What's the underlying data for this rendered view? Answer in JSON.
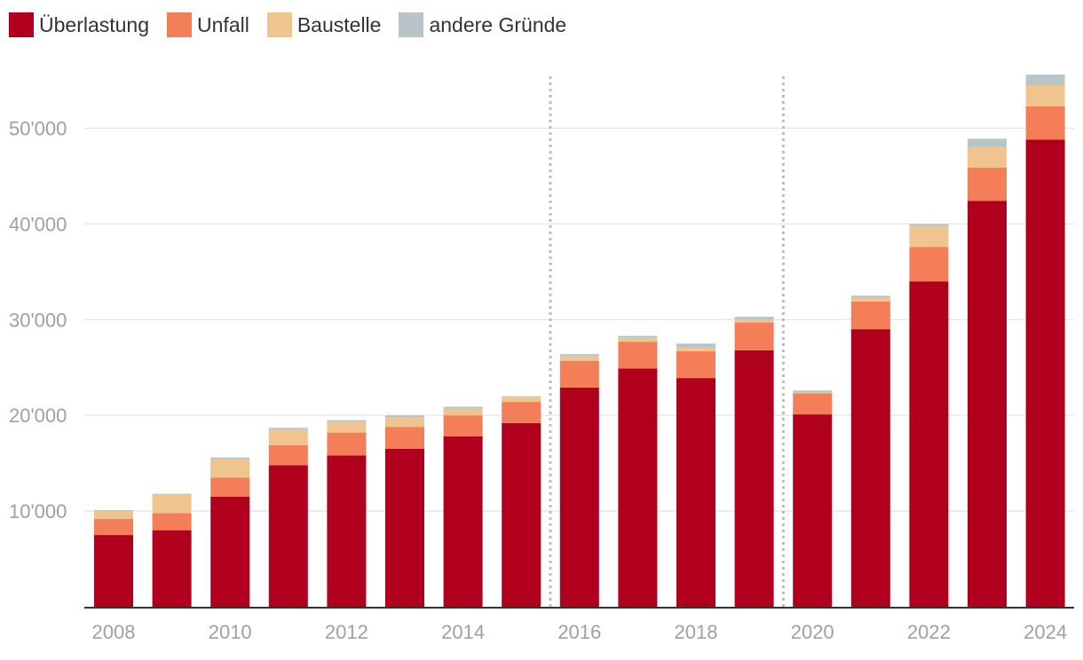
{
  "legend": [
    {
      "label": "Überlastung",
      "color": "#b0001e"
    },
    {
      "label": "Unfall",
      "color": "#f47e58"
    },
    {
      "label": "Baustelle",
      "color": "#f0c48f"
    },
    {
      "label": "andere Gründe",
      "color": "#b7c5c8"
    }
  ],
  "chart_data": {
    "type": "bar",
    "stacked": true,
    "title": "",
    "xlabel": "",
    "ylabel": "",
    "ylim": [
      0,
      57000
    ],
    "grid": true,
    "legend_position": "top-left",
    "categories": [
      "2008",
      "2009",
      "2010",
      "2011",
      "2012",
      "2013",
      "2014",
      "2015",
      "2016",
      "2017",
      "2018",
      "2019",
      "2020",
      "2021",
      "2022",
      "2023",
      "2024"
    ],
    "x_tick_labels": [
      "2008",
      "2010",
      "2012",
      "2014",
      "2016",
      "2018",
      "2020",
      "2022",
      "2024"
    ],
    "y_ticks": [
      10000,
      20000,
      30000,
      40000,
      50000
    ],
    "y_tick_labels": [
      "10'000",
      "20'000",
      "30'000",
      "40'000",
      "50'000"
    ],
    "vertical_dotted_lines_between": [
      [
        "2015",
        "2016"
      ],
      [
        "2019",
        "2020"
      ]
    ],
    "series": [
      {
        "name": "Überlastung",
        "color": "#b0001e",
        "values": [
          7500,
          8000,
          11500,
          14800,
          15800,
          16500,
          17800,
          19200,
          22900,
          24900,
          23900,
          26800,
          20100,
          29000,
          34000,
          42400,
          48800
        ]
      },
      {
        "name": "Unfall",
        "color": "#f47e58",
        "values": [
          1700,
          1800,
          2000,
          2100,
          2400,
          2300,
          2200,
          2200,
          2800,
          2800,
          2800,
          2900,
          2200,
          2900,
          3600,
          3500,
          3500
        ]
      },
      {
        "name": "Baustelle",
        "color": "#f0c48f",
        "values": [
          800,
          1900,
          1900,
          1600,
          1100,
          1000,
          700,
          500,
          500,
          400,
          400,
          300,
          100,
          400,
          2200,
          2200,
          2200
        ]
      },
      {
        "name": "andere Gründe",
        "color": "#b7c5c8",
        "values": [
          100,
          100,
          200,
          200,
          200,
          200,
          200,
          100,
          200,
          200,
          400,
          300,
          200,
          200,
          200,
          800,
          1100
        ]
      }
    ]
  }
}
